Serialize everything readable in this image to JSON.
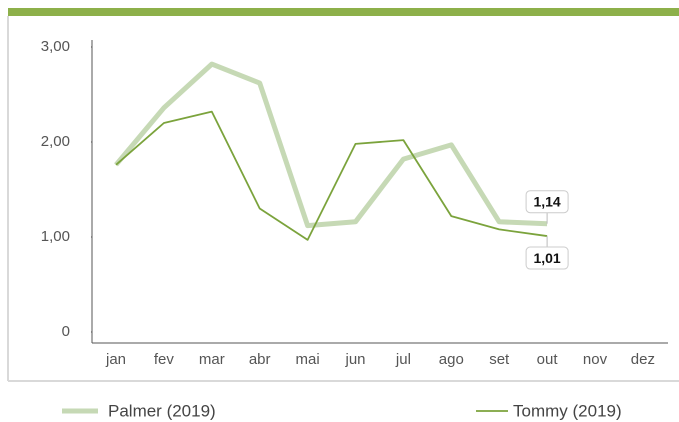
{
  "chart_data": {
    "type": "line",
    "categories": [
      "jan",
      "fev",
      "mar",
      "abr",
      "mai",
      "jun",
      "jul",
      "ago",
      "set",
      "out",
      "nov",
      "dez"
    ],
    "series": [
      {
        "name": "Palmer (2019)",
        "color": "#c6d9b5",
        "values": [
          1.76,
          2.36,
          2.82,
          2.62,
          1.12,
          1.16,
          1.82,
          1.97,
          1.16,
          1.14,
          null,
          null
        ],
        "value_labels": [
          null,
          null,
          null,
          null,
          null,
          null,
          null,
          null,
          null,
          "1,14",
          null,
          null
        ]
      },
      {
        "name": "Tommy (2019)",
        "color": "#7ba33c",
        "values": [
          1.76,
          2.2,
          2.32,
          1.3,
          0.97,
          1.98,
          2.02,
          1.22,
          1.08,
          1.01,
          null,
          null
        ],
        "value_labels": [
          null,
          null,
          null,
          null,
          null,
          null,
          null,
          null,
          null,
          "1,01",
          null,
          null
        ]
      }
    ],
    "ylim": [
      0,
      3
    ],
    "yticks": [
      0,
      {
        "value": 1,
        "label": "1,00"
      },
      {
        "value": 2,
        "label": "2,00"
      },
      {
        "value": 3,
        "label": "3,00"
      }
    ],
    "grid": false
  }
}
